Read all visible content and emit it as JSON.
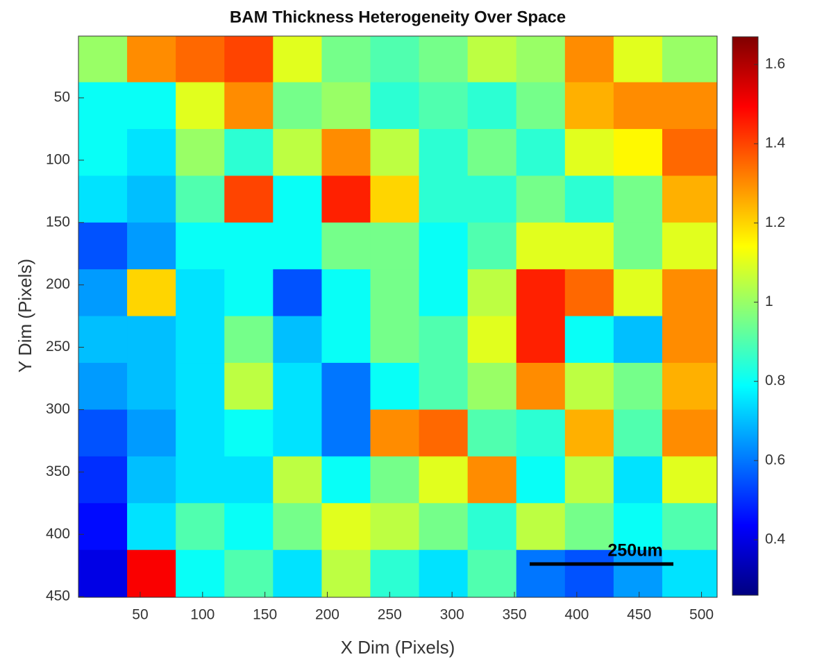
{
  "chart_data": {
    "type": "heatmap",
    "title": "BAM Thickness Heterogeneity Over Space",
    "xlabel": "X Dim (Pixels)",
    "ylabel": "Y Dim (Pixels)",
    "annotations": [
      "250um"
    ],
    "colormap": "jet",
    "y_reversed": true,
    "xlim": [
      0.5,
      512.5
    ],
    "ylim": [
      0.5,
      450.5
    ],
    "xticks": [
      50,
      100,
      150,
      200,
      250,
      300,
      350,
      400,
      450,
      500
    ],
    "yticks": [
      50,
      100,
      150,
      200,
      250,
      300,
      350,
      400,
      450
    ],
    "clim": [
      0.26,
      1.67
    ],
    "cticks": [
      0.4,
      0.6,
      0.8,
      1,
      1.2,
      1.4,
      1.6
    ],
    "x": [
      20,
      59,
      98,
      137,
      176,
      215,
      254,
      293,
      332,
      371,
      410,
      449,
      488
    ],
    "y": [
      19,
      56,
      94,
      131,
      169,
      206,
      244,
      281,
      319,
      356,
      394,
      431
    ],
    "z": [
      [
        1.0,
        1.3,
        1.35,
        1.4,
        1.1,
        0.95,
        0.9,
        0.95,
        1.05,
        1.0,
        1.3,
        1.1,
        1.0
      ],
      [
        0.8,
        0.8,
        1.1,
        1.3,
        0.95,
        1.0,
        0.85,
        0.9,
        0.85,
        0.95,
        1.25,
        1.3,
        1.3
      ],
      [
        0.8,
        0.75,
        1.0,
        0.85,
        1.05,
        1.3,
        1.05,
        0.85,
        0.95,
        0.85,
        1.1,
        1.15,
        1.35
      ],
      [
        0.75,
        0.7,
        0.9,
        1.4,
        0.8,
        1.45,
        1.2,
        0.85,
        0.85,
        0.95,
        0.85,
        0.95,
        1.25
      ],
      [
        0.55,
        0.65,
        0.8,
        0.8,
        0.8,
        0.95,
        0.95,
        0.8,
        0.9,
        1.1,
        1.1,
        0.95,
        1.1
      ],
      [
        0.65,
        1.2,
        0.75,
        0.8,
        0.55,
        0.8,
        0.95,
        0.8,
        1.05,
        1.45,
        1.35,
        1.1,
        1.3
      ],
      [
        0.7,
        0.7,
        0.75,
        0.95,
        0.7,
        0.8,
        0.95,
        0.9,
        1.1,
        1.45,
        0.8,
        0.7,
        1.3
      ],
      [
        0.65,
        0.7,
        0.75,
        1.05,
        0.75,
        0.6,
        0.8,
        0.9,
        1.0,
        1.3,
        1.05,
        0.95,
        1.25
      ],
      [
        0.55,
        0.65,
        0.75,
        0.8,
        0.75,
        0.6,
        1.3,
        1.35,
        0.9,
        0.85,
        1.25,
        0.9,
        1.3
      ],
      [
        0.5,
        0.7,
        0.75,
        0.75,
        1.05,
        0.8,
        0.95,
        1.1,
        1.3,
        0.8,
        1.05,
        0.75,
        1.1
      ],
      [
        0.45,
        0.75,
        0.9,
        0.8,
        0.95,
        1.1,
        1.05,
        0.95,
        0.85,
        1.05,
        0.95,
        0.8,
        0.9
      ],
      [
        0.4,
        1.5,
        0.8,
        0.9,
        0.75,
        1.05,
        0.85,
        0.75,
        0.9,
        0.6,
        0.55,
        0.65,
        0.75
      ]
    ]
  }
}
